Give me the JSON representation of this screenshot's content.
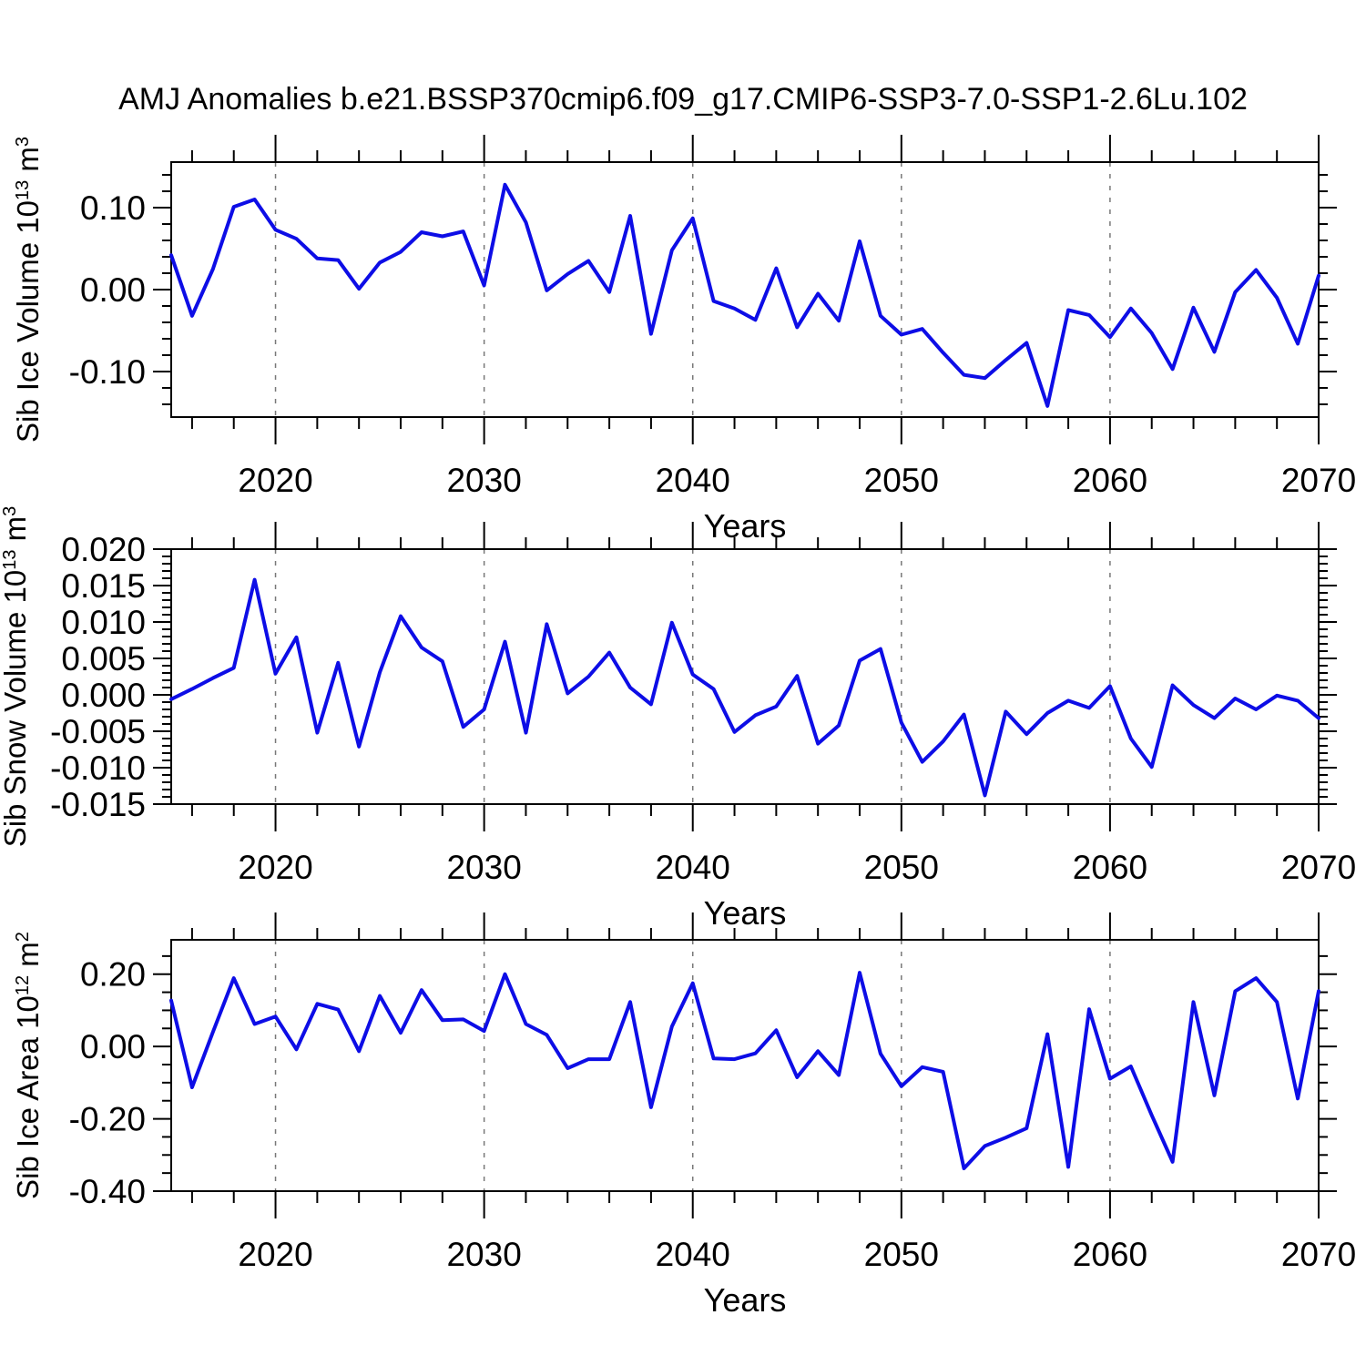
{
  "title": "AMJ Anomalies b.e21.BSSP370cmip6.f09_g17.CMIP6-SSP3-7.0-SSP1-2.6Lu.102",
  "colors": {
    "line": "#0D0DE6",
    "frame": "#000000",
    "grid": "#787878",
    "text": "#000000",
    "background": "#ffffff"
  },
  "chart_data": [
    {
      "type": "line",
      "name": "sib-ice-volume",
      "ylabel": "Sib Ice Volume 10^13 m^3",
      "ylabel_parts": [
        {
          "t": "Sib Ice Volume 10"
        },
        {
          "t": "13",
          "sup": true
        },
        {
          "t": " m"
        },
        {
          "t": "3",
          "sup": true
        }
      ],
      "xlabel": "Years",
      "x": [
        2015,
        2016,
        2017,
        2018,
        2019,
        2020,
        2021,
        2022,
        2023,
        2024,
        2025,
        2026,
        2027,
        2028,
        2029,
        2030,
        2031,
        2032,
        2033,
        2034,
        2035,
        2036,
        2037,
        2038,
        2039,
        2040,
        2041,
        2042,
        2043,
        2044,
        2045,
        2046,
        2047,
        2048,
        2049,
        2050,
        2051,
        2052,
        2053,
        2054,
        2055,
        2056,
        2057,
        2058,
        2059,
        2060,
        2061,
        2062,
        2063,
        2064,
        2065,
        2066,
        2067,
        2068,
        2069,
        2070
      ],
      "values": [
        0.042,
        -0.032,
        0.025,
        0.101,
        0.11,
        0.073,
        0.062,
        0.038,
        0.036,
        0.001,
        0.033,
        0.046,
        0.07,
        0.065,
        0.071,
        0.005,
        0.128,
        0.082,
        -0.001,
        0.019,
        0.035,
        -0.003,
        0.09,
        -0.054,
        0.048,
        0.087,
        -0.014,
        -0.023,
        -0.037,
        0.026,
        -0.046,
        -0.005,
        -0.038,
        0.059,
        -0.032,
        -0.055,
        -0.048,
        -0.077,
        -0.104,
        -0.108,
        -0.086,
        -0.065,
        -0.142,
        -0.025,
        -0.031,
        -0.058,
        -0.023,
        -0.053,
        -0.097,
        -0.022,
        -0.076,
        -0.003,
        0.024,
        -0.01,
        -0.066,
        0.017
      ],
      "xlim": [
        2015,
        2070
      ],
      "ylim": [
        -0.1556,
        0.1556
      ],
      "x_tick_values": [
        2020,
        2030,
        2040,
        2050,
        2060,
        2070
      ],
      "x_tick_labels": [
        "2020",
        "2030",
        "2040",
        "2050",
        "2060",
        "2070"
      ],
      "x_minor_step": 2,
      "y_tick_values": [
        0.1,
        0.0,
        -0.1
      ],
      "y_tick_labels": [
        "0.10",
        "0.00",
        "-0.10"
      ],
      "y_minor_step": 0.02,
      "grid_years": [
        2020,
        2030,
        2040,
        2050,
        2060
      ],
      "grid": "vertical-dashed",
      "legend": "none"
    },
    {
      "type": "line",
      "name": "sib-snow-volume",
      "ylabel": "Sib Snow Volume 10^13 m^3",
      "ylabel_parts": [
        {
          "t": "Sib Snow Volume 10"
        },
        {
          "t": "13",
          "sup": true
        },
        {
          "t": " m"
        },
        {
          "t": "3",
          "sup": true
        }
      ],
      "xlabel": "Years",
      "x": [
        2015,
        2016,
        2017,
        2018,
        2019,
        2020,
        2021,
        2022,
        2023,
        2024,
        2025,
        2026,
        2027,
        2028,
        2029,
        2030,
        2031,
        2032,
        2033,
        2034,
        2035,
        2036,
        2037,
        2038,
        2039,
        2040,
        2041,
        2042,
        2043,
        2044,
        2045,
        2046,
        2047,
        2048,
        2049,
        2050,
        2051,
        2052,
        2053,
        2054,
        2055,
        2056,
        2057,
        2058,
        2059,
        2060,
        2061,
        2062,
        2063,
        2064,
        2065,
        2066,
        2067,
        2068,
        2069,
        2070
      ],
      "values": [
        -0.0006,
        0.0008,
        0.0023,
        0.0037,
        0.0158,
        0.0029,
        0.0079,
        -0.0052,
        0.0044,
        -0.0071,
        0.0031,
        0.0108,
        0.0065,
        0.0046,
        -0.0044,
        -0.002,
        0.0073,
        -0.0052,
        0.0097,
        0.0002,
        0.0025,
        0.0058,
        0.001,
        -0.0013,
        0.0099,
        0.0028,
        0.0008,
        -0.0051,
        -0.0028,
        -0.0016,
        0.0026,
        -0.0067,
        -0.0042,
        0.0047,
        0.0063,
        -0.0038,
        -0.0092,
        -0.0064,
        -0.0027,
        -0.0138,
        -0.0023,
        -0.0054,
        -0.0025,
        -0.0008,
        -0.0018,
        0.0012,
        -0.006,
        -0.0099,
        0.0013,
        -0.0014,
        -0.0032,
        -0.0005,
        -0.002,
        -0.0001,
        -0.0008,
        -0.0032
      ],
      "xlim": [
        2015,
        2070
      ],
      "ylim": [
        -0.015,
        0.02
      ],
      "x_tick_values": [
        2020,
        2030,
        2040,
        2050,
        2060,
        2070
      ],
      "x_tick_labels": [
        "2020",
        "2030",
        "2040",
        "2050",
        "2060",
        "2070"
      ],
      "x_minor_step": 2,
      "y_tick_values": [
        0.02,
        0.015,
        0.01,
        0.005,
        0.0,
        -0.005,
        -0.01,
        -0.015
      ],
      "y_tick_labels": [
        "0.020",
        "0.015",
        "0.010",
        "0.005",
        "0.000",
        "-0.005",
        "-0.010",
        "-0.015"
      ],
      "y_minor_step": 0.001,
      "grid_years": [
        2020,
        2030,
        2040,
        2050,
        2060
      ],
      "grid": "vertical-dashed",
      "legend": "none"
    },
    {
      "type": "line",
      "name": "sib-ice-area",
      "ylabel": "Sib Ice Area 10^12 m^2",
      "ylabel_parts": [
        {
          "t": "Sib Ice Area 10"
        },
        {
          "t": "12",
          "sup": true
        },
        {
          "t": " m"
        },
        {
          "t": "2",
          "sup": true
        }
      ],
      "xlabel": "Years",
      "x": [
        2015,
        2016,
        2017,
        2018,
        2019,
        2020,
        2021,
        2022,
        2023,
        2024,
        2025,
        2026,
        2027,
        2028,
        2029,
        2030,
        2031,
        2032,
        2033,
        2034,
        2035,
        2036,
        2037,
        2038,
        2039,
        2040,
        2041,
        2042,
        2043,
        2044,
        2045,
        2046,
        2047,
        2048,
        2049,
        2050,
        2051,
        2052,
        2053,
        2054,
        2055,
        2056,
        2057,
        2058,
        2059,
        2060,
        2061,
        2062,
        2063,
        2064,
        2065,
        2066,
        2067,
        2068,
        2069,
        2070
      ],
      "values": [
        0.127,
        -0.113,
        0.04,
        0.189,
        0.062,
        0.083,
        -0.008,
        0.118,
        0.102,
        -0.013,
        0.14,
        0.038,
        0.156,
        0.073,
        0.075,
        0.043,
        0.2,
        0.062,
        0.032,
        -0.06,
        -0.035,
        -0.035,
        0.123,
        -0.168,
        0.055,
        0.175,
        -0.033,
        -0.035,
        -0.019,
        0.045,
        -0.085,
        -0.013,
        -0.079,
        0.204,
        -0.02,
        -0.11,
        -0.057,
        -0.07,
        -0.337,
        -0.275,
        -0.252,
        -0.226,
        0.034,
        -0.333,
        0.103,
        -0.089,
        -0.055,
        -0.19,
        -0.319,
        0.123,
        -0.135,
        0.153,
        0.189,
        0.123,
        -0.144,
        0.153
      ],
      "xlim": [
        2015,
        2070
      ],
      "ylim": [
        -0.4,
        0.295
      ],
      "x_tick_values": [
        2020,
        2030,
        2040,
        2050,
        2060,
        2070
      ],
      "x_tick_labels": [
        "2020",
        "2030",
        "2040",
        "2050",
        "2060",
        "2070"
      ],
      "x_minor_step": 2,
      "y_tick_values": [
        0.2,
        0.0,
        -0.2,
        -0.4
      ],
      "y_tick_labels": [
        "0.20",
        "0.00",
        "-0.20",
        "-0.40"
      ],
      "y_minor_step": 0.05,
      "grid_years": [
        2020,
        2030,
        2040,
        2050,
        2060
      ],
      "grid": "vertical-dashed",
      "legend": "none"
    }
  ]
}
